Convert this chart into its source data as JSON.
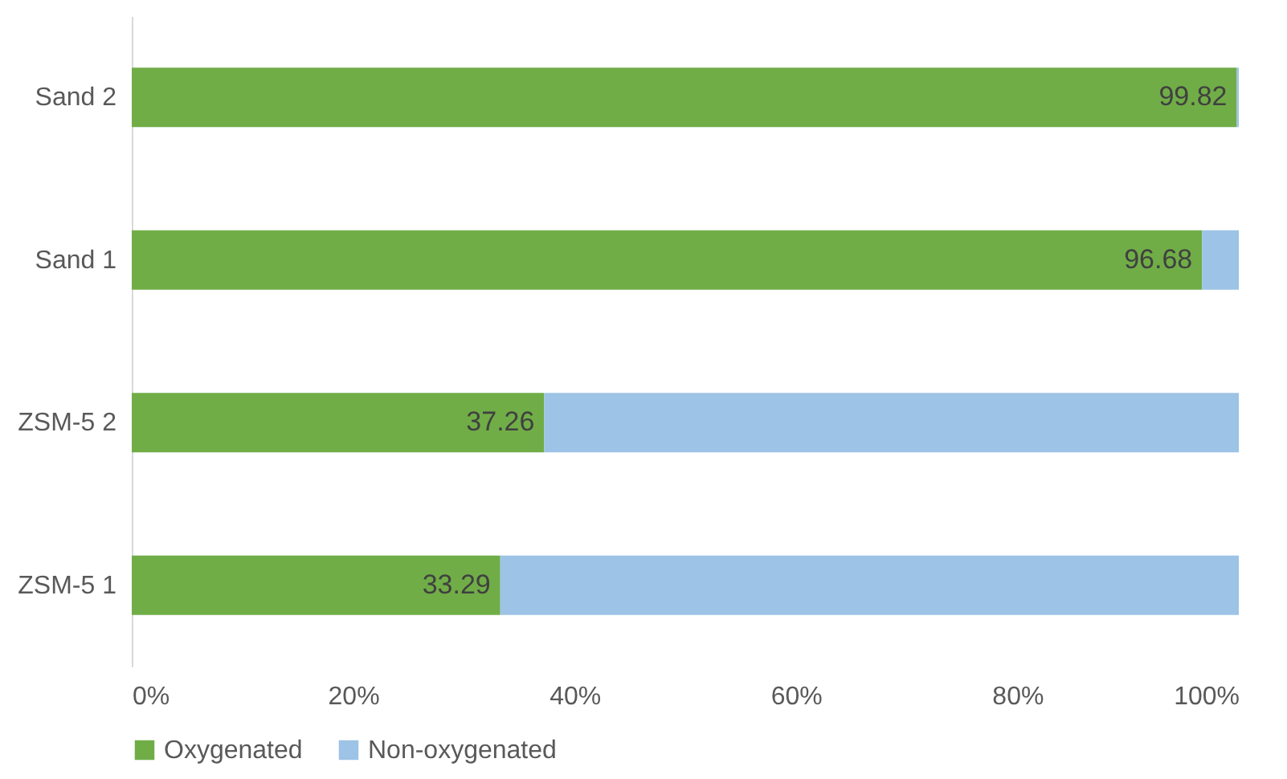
{
  "chart_data": {
    "type": "bar",
    "orientation": "horizontal",
    "stacked": true,
    "categories": [
      "Sand 2",
      "Sand 1",
      "ZSM-5 2",
      "ZSM-5 1"
    ],
    "series": [
      {
        "name": "Oxygenated",
        "color": "#70ad47",
        "values": [
          99.82,
          96.68,
          37.26,
          33.29
        ],
        "value_labels": [
          "99.82",
          "96.68",
          "37.26",
          "33.29"
        ]
      },
      {
        "name": "Non-oxygenated",
        "color": "#9dc3e6",
        "values": [
          0.18,
          3.32,
          62.74,
          66.71
        ]
      }
    ],
    "xlim": [
      0,
      100
    ],
    "xticks": [
      {
        "value": 0,
        "label": "0%"
      },
      {
        "value": 20,
        "label": "20%"
      },
      {
        "value": 40,
        "label": "40%"
      },
      {
        "value": 60,
        "label": "60%"
      },
      {
        "value": 80,
        "label": "80%"
      },
      {
        "value": 100,
        "label": "100%"
      }
    ],
    "grid": false,
    "legend": "bottom"
  }
}
